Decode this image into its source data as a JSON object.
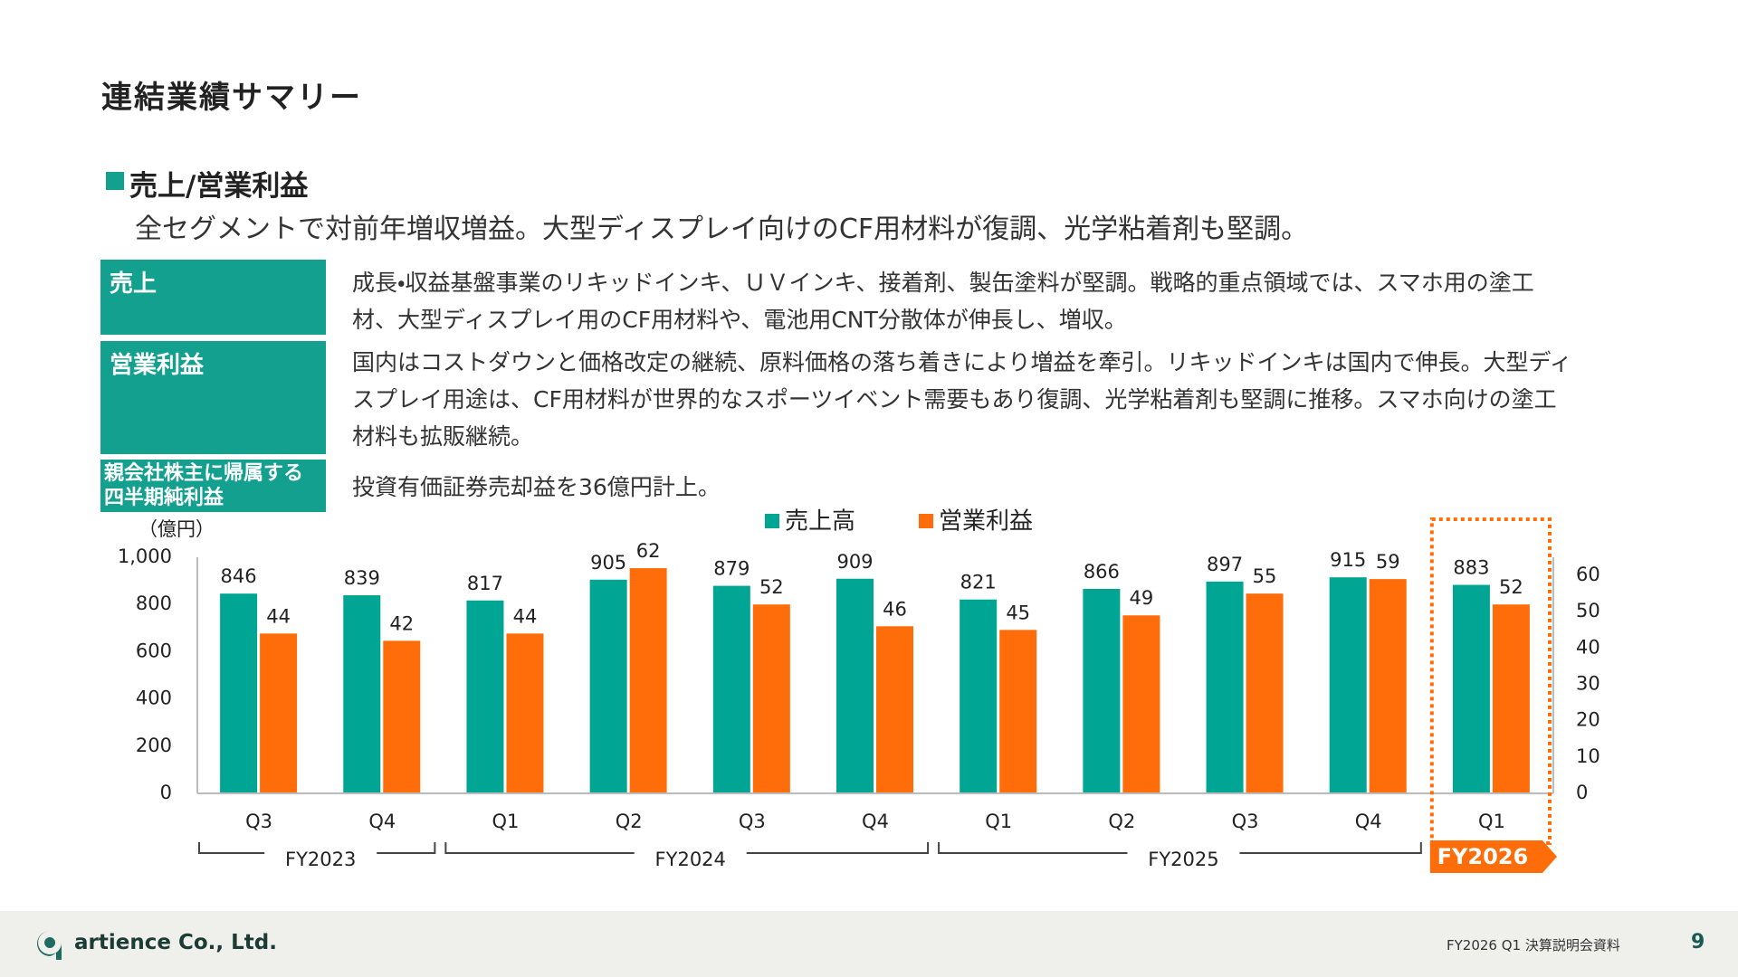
{
  "title": "連結業績サマリー",
  "section": "売上/営業利益",
  "lead": "全セグメントで対前年増収増益。大型ディスプレイ向けのCF用材料が復調、光学粘着剤も堅調。",
  "table": {
    "rows": [
      [
        "売上",
        "成長・収益基盤事業のリキッドインキ、ＵＶインキ、接着剤、製缶塗料が堅調。戦略的重点領域では、スマホ用の塗工材、大型ディスプレイ用のCF用材料や、電池用CNT分散体が伸長し、増収。"
      ],
      [
        "営業利益",
        "国内はコストダウンと価格改定の継続、原料価格の落ち着きにより増益を牽引。リキッドインキは国内で伸長。大型ディスプレイ用途は、CF用材料が世界的なスポーツイベント需要もあり復調、光学粘着剤も堅調に推移。スマホ向けの塗工材料も拡販継続。"
      ],
      [
        "親会社株主に帰属する四半期純利益",
        "投資有価証券売却益を36億円計上。"
      ]
    ]
  },
  "chart_data": {
    "type": "bar",
    "y_label": "（億円）",
    "categories": [
      "Q3",
      "Q4",
      "Q1",
      "Q2",
      "Q3",
      "Q4",
      "Q1",
      "Q2",
      "Q3",
      "Q4",
      "Q1"
    ],
    "groups": [
      {
        "label": "FY2023",
        "span": 2
      },
      {
        "label": "FY2024",
        "span": 4
      },
      {
        "label": "FY2025",
        "span": 4
      },
      {
        "label": "FY2026",
        "span": 1,
        "highlight": true
      }
    ],
    "series": [
      {
        "name": "売上高",
        "color": "#00a693",
        "values": [
          846,
          839,
          817,
          905,
          879,
          909,
          821,
          866,
          897,
          915,
          883
        ]
      },
      {
        "name": "営業利益",
        "color": "#ff6d0a",
        "axis": "y2",
        "values": [
          44,
          42,
          44,
          62,
          52,
          46,
          45,
          49,
          55,
          59,
          52
        ]
      }
    ],
    "ylim": [
      0,
      1000
    ],
    "yticks": [
      0,
      200,
      400,
      600,
      800,
      {
        "value": 1000,
        "label": "1,000"
      }
    ],
    "y2lim": [
      0,
      65
    ],
    "y2ticks": [
      0,
      10,
      20,
      30,
      40,
      50,
      60
    ],
    "grid": false
  },
  "footer": {
    "company": "artience Co., Ltd.",
    "document": "FY2026 Q1 決算説明会資料",
    "page": "9"
  }
}
